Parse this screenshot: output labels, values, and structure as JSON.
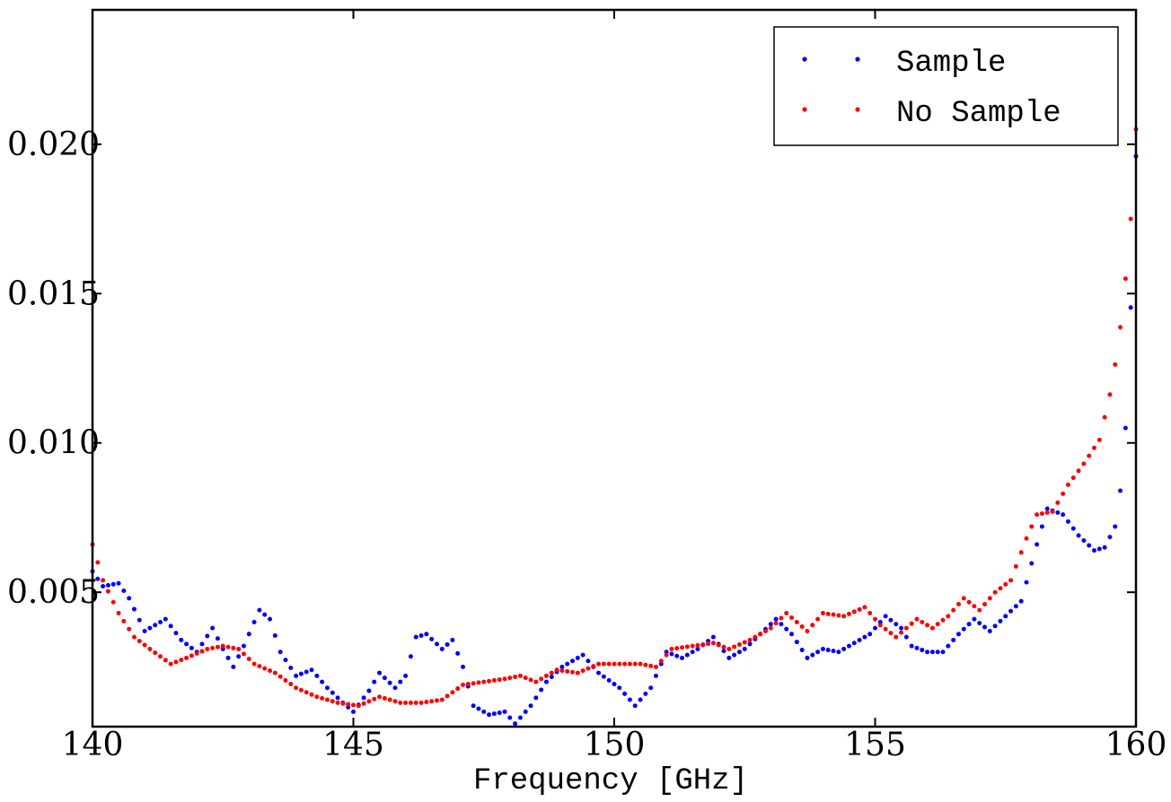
{
  "chart_data": {
    "type": "scatter",
    "title": "",
    "xlabel": "Frequency [GHz]",
    "ylabel": "",
    "xlim": [
      140,
      160
    ],
    "ylim": [
      0.0005,
      0.0245
    ],
    "x_ticks": [
      140,
      145,
      150,
      155,
      160
    ],
    "x_tick_labels": [
      "140",
      "145",
      "150",
      "155",
      "160"
    ],
    "y_ticks": [
      0.005,
      0.01,
      0.015,
      0.02
    ],
    "y_tick_labels": [
      "0.005",
      "0.010",
      "0.015",
      "0.020"
    ],
    "grid": false,
    "legend_position": "top-right",
    "series": [
      {
        "name": "Sample",
        "color": "#0000ff",
        "knots": [
          [
            140.0,
            0.0057
          ],
          [
            140.2,
            0.0052
          ],
          [
            140.5,
            0.0053
          ],
          [
            140.7,
            0.0048
          ],
          [
            141.0,
            0.0037
          ],
          [
            141.4,
            0.0041
          ],
          [
            141.7,
            0.0034
          ],
          [
            142.0,
            0.003
          ],
          [
            142.3,
            0.0038
          ],
          [
            142.5,
            0.0031
          ],
          [
            142.7,
            0.0025
          ],
          [
            142.9,
            0.0032
          ],
          [
            143.2,
            0.0044
          ],
          [
            143.4,
            0.0041
          ],
          [
            143.6,
            0.003
          ],
          [
            143.9,
            0.0022
          ],
          [
            144.2,
            0.0024
          ],
          [
            144.5,
            0.0018
          ],
          [
            144.8,
            0.0013
          ],
          [
            145.0,
            0.001
          ],
          [
            145.3,
            0.0017
          ],
          [
            145.5,
            0.0023
          ],
          [
            145.8,
            0.0018
          ],
          [
            146.0,
            0.0022
          ],
          [
            146.2,
            0.0035
          ],
          [
            146.4,
            0.0036
          ],
          [
            146.7,
            0.0031
          ],
          [
            146.9,
            0.0034
          ],
          [
            147.1,
            0.0025
          ],
          [
            147.3,
            0.0012
          ],
          [
            147.6,
            0.0009
          ],
          [
            147.9,
            0.001
          ],
          [
            148.1,
            0.0006
          ],
          [
            148.4,
            0.0012
          ],
          [
            148.7,
            0.002
          ],
          [
            149.0,
            0.0025
          ],
          [
            149.4,
            0.0029
          ],
          [
            149.7,
            0.0023
          ],
          [
            150.1,
            0.0018
          ],
          [
            150.4,
            0.0012
          ],
          [
            150.7,
            0.0018
          ],
          [
            151.0,
            0.003
          ],
          [
            151.3,
            0.0028
          ],
          [
            151.6,
            0.0031
          ],
          [
            151.9,
            0.0035
          ],
          [
            152.2,
            0.0028
          ],
          [
            152.5,
            0.0031
          ],
          [
            152.8,
            0.0036
          ],
          [
            153.1,
            0.0041
          ],
          [
            153.4,
            0.0036
          ],
          [
            153.7,
            0.0028
          ],
          [
            154.0,
            0.0031
          ],
          [
            154.3,
            0.003
          ],
          [
            154.6,
            0.0033
          ],
          [
            154.9,
            0.0036
          ],
          [
            155.2,
            0.0042
          ],
          [
            155.5,
            0.0038
          ],
          [
            155.7,
            0.0032
          ],
          [
            156.0,
            0.003
          ],
          [
            156.3,
            0.003
          ],
          [
            156.6,
            0.0036
          ],
          [
            156.9,
            0.0041
          ],
          [
            157.2,
            0.0037
          ],
          [
            157.5,
            0.0042
          ],
          [
            157.8,
            0.0047
          ],
          [
            158.1,
            0.0066
          ],
          [
            158.3,
            0.0078
          ],
          [
            158.6,
            0.0076
          ],
          [
            158.9,
            0.0069
          ],
          [
            159.2,
            0.0064
          ],
          [
            159.4,
            0.0065
          ],
          [
            159.6,
            0.0072
          ],
          [
            159.75,
            0.009
          ],
          [
            159.85,
            0.012
          ],
          [
            160.0,
            0.0196
          ]
        ]
      },
      {
        "name": "No Sample",
        "color": "#ff0000",
        "knots": [
          [
            140.0,
            0.0066
          ],
          [
            140.2,
            0.0054
          ],
          [
            140.5,
            0.0043
          ],
          [
            140.8,
            0.0035
          ],
          [
            141.1,
            0.0031
          ],
          [
            141.5,
            0.0026
          ],
          [
            141.8,
            0.0028
          ],
          [
            142.2,
            0.0031
          ],
          [
            142.5,
            0.0032
          ],
          [
            142.8,
            0.0031
          ],
          [
            143.1,
            0.0026
          ],
          [
            143.5,
            0.0023
          ],
          [
            143.9,
            0.0018
          ],
          [
            144.3,
            0.0015
          ],
          [
            144.7,
            0.0013
          ],
          [
            145.1,
            0.0012
          ],
          [
            145.5,
            0.0015
          ],
          [
            145.9,
            0.0013
          ],
          [
            146.3,
            0.0013
          ],
          [
            146.7,
            0.0014
          ],
          [
            147.1,
            0.0019
          ],
          [
            147.5,
            0.002
          ],
          [
            147.9,
            0.0021
          ],
          [
            148.2,
            0.0022
          ],
          [
            148.5,
            0.002
          ],
          [
            148.9,
            0.0024
          ],
          [
            149.3,
            0.0023
          ],
          [
            149.7,
            0.0026
          ],
          [
            150.1,
            0.0026
          ],
          [
            150.5,
            0.0026
          ],
          [
            150.8,
            0.0025
          ],
          [
            151.1,
            0.0031
          ],
          [
            151.5,
            0.0032
          ],
          [
            151.9,
            0.0033
          ],
          [
            152.2,
            0.0031
          ],
          [
            152.6,
            0.0034
          ],
          [
            153.0,
            0.0038
          ],
          [
            153.3,
            0.0043
          ],
          [
            153.7,
            0.0037
          ],
          [
            154.0,
            0.0043
          ],
          [
            154.4,
            0.0042
          ],
          [
            154.8,
            0.0045
          ],
          [
            155.1,
            0.0039
          ],
          [
            155.4,
            0.0035
          ],
          [
            155.8,
            0.0041
          ],
          [
            156.1,
            0.0038
          ],
          [
            156.4,
            0.0042
          ],
          [
            156.7,
            0.0048
          ],
          [
            157.0,
            0.0044
          ],
          [
            157.3,
            0.005
          ],
          [
            157.6,
            0.0054
          ],
          [
            157.9,
            0.0068
          ],
          [
            158.1,
            0.0076
          ],
          [
            158.4,
            0.0077
          ],
          [
            158.7,
            0.0086
          ],
          [
            159.0,
            0.0093
          ],
          [
            159.3,
            0.0101
          ],
          [
            159.55,
            0.012
          ],
          [
            159.75,
            0.0145
          ],
          [
            159.9,
            0.0175
          ],
          [
            160.0,
            0.0205
          ]
        ]
      }
    ]
  }
}
